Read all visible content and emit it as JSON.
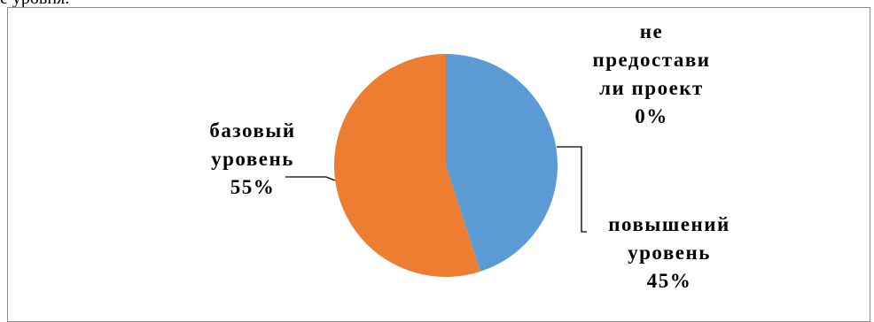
{
  "top_text": "е уровня.",
  "chart_data": {
    "type": "pie",
    "title": "",
    "series": [
      {
        "slices": [
          {
            "label_lines": [
              "повышений",
              "уровень"
            ],
            "percent_label": "45%",
            "value": 45,
            "color": "#5B9BD5"
          },
          {
            "label_lines": [
              "базовый",
              "уровень"
            ],
            "percent_label": "55%",
            "value": 55,
            "color": "#ED7D31"
          },
          {
            "label_lines": [
              "не",
              "предостави",
              "ли проект"
            ],
            "percent_label": "0%",
            "value": 0,
            "color": "#A5A5A5"
          }
        ]
      }
    ],
    "legend": "none"
  }
}
